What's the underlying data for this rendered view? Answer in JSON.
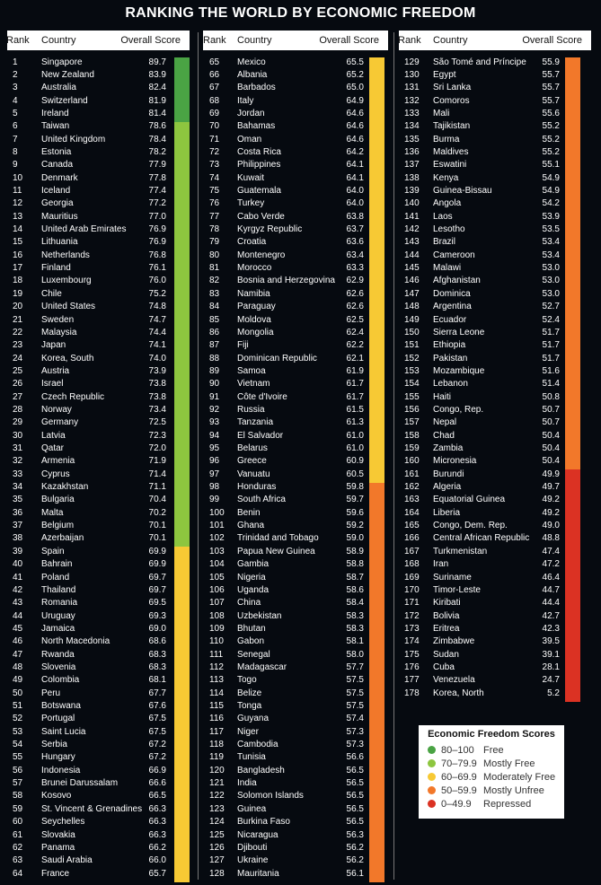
{
  "title": "RANKING THE WORLD BY ECONOMIC FREEDOM",
  "headers": {
    "rank": "Rank",
    "country": "Country",
    "score": "Overall Score"
  },
  "colors": {
    "free": "#4aa344",
    "mostly_free": "#8dc63f",
    "moderately_free": "#f7c934",
    "mostly_unfree": "#f2782a",
    "repressed": "#db3223"
  },
  "legend": {
    "title": "Economic Freedom Scores",
    "items": [
      {
        "range": "80–100",
        "label": "Free",
        "color": "#4aa344"
      },
      {
        "range": "70–79.9",
        "label": "Mostly Free",
        "color": "#8dc63f"
      },
      {
        "range": "60–69.9",
        "label": "Moderately Free",
        "color": "#f7c934"
      },
      {
        "range": "50–59.9",
        "label": "Mostly Unfree",
        "color": "#f2782a"
      },
      {
        "range": "0–49.9",
        "label": "Repressed",
        "color": "#db3223"
      }
    ]
  },
  "chart_data": {
    "type": "table",
    "title": "RANKING THE WORLD BY ECONOMIC FREEDOM",
    "columns": [
      "Rank",
      "Country",
      "Overall Score"
    ],
    "rows": [
      [
        1,
        "Singapore",
        "89.7"
      ],
      [
        2,
        "New Zealand",
        "83.9"
      ],
      [
        3,
        "Australia",
        "82.4"
      ],
      [
        4,
        "Switzerland",
        "81.9"
      ],
      [
        5,
        "Ireland",
        "81.4"
      ],
      [
        6,
        "Taiwan",
        "78.6"
      ],
      [
        7,
        "United Kingdom",
        "78.4"
      ],
      [
        8,
        "Estonia",
        "78.2"
      ],
      [
        9,
        "Canada",
        "77.9"
      ],
      [
        10,
        "Denmark",
        "77.8"
      ],
      [
        11,
        "Iceland",
        "77.4"
      ],
      [
        12,
        "Georgia",
        "77.2"
      ],
      [
        13,
        "Mauritius",
        "77.0"
      ],
      [
        14,
        "United Arab Emirates",
        "76.9"
      ],
      [
        15,
        "Lithuania",
        "76.9"
      ],
      [
        16,
        "Netherlands",
        "76.8"
      ],
      [
        17,
        "Finland",
        "76.1"
      ],
      [
        18,
        "Luxembourg",
        "76.0"
      ],
      [
        19,
        "Chile",
        "75.2"
      ],
      [
        20,
        "United States",
        "74.8"
      ],
      [
        21,
        "Sweden",
        "74.7"
      ],
      [
        22,
        "Malaysia",
        "74.4"
      ],
      [
        23,
        "Japan",
        "74.1"
      ],
      [
        24,
        "Korea, South",
        "74.0"
      ],
      [
        25,
        "Austria",
        "73.9"
      ],
      [
        26,
        "Israel",
        "73.8"
      ],
      [
        27,
        "Czech Republic",
        "73.8"
      ],
      [
        28,
        "Norway",
        "73.4"
      ],
      [
        29,
        "Germany",
        "72.5"
      ],
      [
        30,
        "Latvia",
        "72.3"
      ],
      [
        31,
        "Qatar",
        "72.0"
      ],
      [
        32,
        "Armenia",
        "71.9"
      ],
      [
        33,
        "Cyprus",
        "71.4"
      ],
      [
        34,
        "Kazakhstan",
        "71.1"
      ],
      [
        35,
        "Bulgaria",
        "70.4"
      ],
      [
        36,
        "Malta",
        "70.2"
      ],
      [
        37,
        "Belgium",
        "70.1"
      ],
      [
        38,
        "Azerbaijan",
        "70.1"
      ],
      [
        39,
        "Spain",
        "69.9"
      ],
      [
        40,
        "Bahrain",
        "69.9"
      ],
      [
        41,
        "Poland",
        "69.7"
      ],
      [
        42,
        "Thailand",
        "69.7"
      ],
      [
        43,
        "Romania",
        "69.5"
      ],
      [
        44,
        "Uruguay",
        "69.3"
      ],
      [
        45,
        "Jamaica",
        "69.0"
      ],
      [
        46,
        "North Macedonia",
        "68.6"
      ],
      [
        47,
        "Rwanda",
        "68.3"
      ],
      [
        48,
        "Slovenia",
        "68.3"
      ],
      [
        49,
        "Colombia",
        "68.1"
      ],
      [
        50,
        "Peru",
        "67.7"
      ],
      [
        51,
        "Botswana",
        "67.6"
      ],
      [
        52,
        "Portugal",
        "67.5"
      ],
      [
        53,
        "Saint Lucia",
        "67.5"
      ],
      [
        54,
        "Serbia",
        "67.2"
      ],
      [
        55,
        "Hungary",
        "67.2"
      ],
      [
        56,
        "Indonesia",
        "66.9"
      ],
      [
        57,
        "Brunei Darussalam",
        "66.6"
      ],
      [
        58,
        "Kosovo",
        "66.5"
      ],
      [
        59,
        "St. Vincent & Grenadines",
        "66.3"
      ],
      [
        60,
        "Seychelles",
        "66.3"
      ],
      [
        61,
        "Slovakia",
        "66.3"
      ],
      [
        62,
        "Panama",
        "66.2"
      ],
      [
        63,
        "Saudi Arabia",
        "66.0"
      ],
      [
        64,
        "France",
        "65.7"
      ],
      [
        65,
        "Mexico",
        "65.5"
      ],
      [
        66,
        "Albania",
        "65.2"
      ],
      [
        67,
        "Barbados",
        "65.0"
      ],
      [
        68,
        "Italy",
        "64.9"
      ],
      [
        69,
        "Jordan",
        "64.6"
      ],
      [
        70,
        "Bahamas",
        "64.6"
      ],
      [
        71,
        "Oman",
        "64.6"
      ],
      [
        72,
        "Costa Rica",
        "64.2"
      ],
      [
        73,
        "Philippines",
        "64.1"
      ],
      [
        74,
        "Kuwait",
        "64.1"
      ],
      [
        75,
        "Guatemala",
        "64.0"
      ],
      [
        76,
        "Turkey",
        "64.0"
      ],
      [
        77,
        "Cabo Verde",
        "63.8"
      ],
      [
        78,
        "Kyrgyz Republic",
        "63.7"
      ],
      [
        79,
        "Croatia",
        "63.6"
      ],
      [
        80,
        "Montenegro",
        "63.4"
      ],
      [
        81,
        "Morocco",
        "63.3"
      ],
      [
        82,
        "Bosnia and Herzegovina",
        "62.9"
      ],
      [
        83,
        "Namibia",
        "62.6"
      ],
      [
        84,
        "Paraguay",
        "62.6"
      ],
      [
        85,
        "Moldova",
        "62.5"
      ],
      [
        86,
        "Mongolia",
        "62.4"
      ],
      [
        87,
        "Fiji",
        "62.2"
      ],
      [
        88,
        "Dominican Republic",
        "62.1"
      ],
      [
        89,
        "Samoa",
        "61.9"
      ],
      [
        90,
        "Vietnam",
        "61.7"
      ],
      [
        91,
        "Côte d'Ivoire",
        "61.7"
      ],
      [
        92,
        "Russia",
        "61.5"
      ],
      [
        93,
        "Tanzania",
        "61.3"
      ],
      [
        94,
        "El Salvador",
        "61.0"
      ],
      [
        95,
        "Belarus",
        "61.0"
      ],
      [
        96,
        "Greece",
        "60.9"
      ],
      [
        97,
        "Vanuatu",
        "60.5"
      ],
      [
        98,
        "Honduras",
        "59.8"
      ],
      [
        99,
        "South Africa",
        "59.7"
      ],
      [
        100,
        "Benin",
        "59.6"
      ],
      [
        101,
        "Ghana",
        "59.2"
      ],
      [
        102,
        "Trinidad and Tobago",
        "59.0"
      ],
      [
        103,
        "Papua New Guinea",
        "58.9"
      ],
      [
        104,
        "Gambia",
        "58.8"
      ],
      [
        105,
        "Nigeria",
        "58.7"
      ],
      [
        106,
        "Uganda",
        "58.6"
      ],
      [
        107,
        "China",
        "58.4"
      ],
      [
        108,
        "Uzbekistan",
        "58.3"
      ],
      [
        109,
        "Bhutan",
        "58.3"
      ],
      [
        110,
        "Gabon",
        "58.1"
      ],
      [
        111,
        "Senegal",
        "58.0"
      ],
      [
        112,
        "Madagascar",
        "57.7"
      ],
      [
        113,
        "Togo",
        "57.5"
      ],
      [
        114,
        "Belize",
        "57.5"
      ],
      [
        115,
        "Tonga",
        "57.5"
      ],
      [
        116,
        "Guyana",
        "57.4"
      ],
      [
        117,
        "Niger",
        "57.3"
      ],
      [
        118,
        "Cambodia",
        "57.3"
      ],
      [
        119,
        "Tunisia",
        "56.6"
      ],
      [
        120,
        "Bangladesh",
        "56.5"
      ],
      [
        121,
        "India",
        "56.5"
      ],
      [
        122,
        "Solomon Islands",
        "56.5"
      ],
      [
        123,
        "Guinea",
        "56.5"
      ],
      [
        124,
        "Burkina Faso",
        "56.5"
      ],
      [
        125,
        "Nicaragua",
        "56.3"
      ],
      [
        126,
        "Djibouti",
        "56.2"
      ],
      [
        127,
        "Ukraine",
        "56.2"
      ],
      [
        128,
        "Mauritania",
        "56.1"
      ],
      [
        129,
        "São Tomé and Príncipe",
        "55.9"
      ],
      [
        130,
        "Egypt",
        "55.7"
      ],
      [
        131,
        "Sri Lanka",
        "55.7"
      ],
      [
        132,
        "Comoros",
        "55.7"
      ],
      [
        133,
        "Mali",
        "55.6"
      ],
      [
        134,
        "Tajikistan",
        "55.2"
      ],
      [
        135,
        "Burma",
        "55.2"
      ],
      [
        136,
        "Maldives",
        "55.2"
      ],
      [
        137,
        "Eswatini",
        "55.1"
      ],
      [
        138,
        "Kenya",
        "54.9"
      ],
      [
        139,
        "Guinea-Bissau",
        "54.9"
      ],
      [
        140,
        "Angola",
        "54.2"
      ],
      [
        141,
        "Laos",
        "53.9"
      ],
      [
        142,
        "Lesotho",
        "53.5"
      ],
      [
        143,
        "Brazil",
        "53.4"
      ],
      [
        144,
        "Cameroon",
        "53.4"
      ],
      [
        145,
        "Malawi",
        "53.0"
      ],
      [
        146,
        "Afghanistan",
        "53.0"
      ],
      [
        147,
        "Dominica",
        "53.0"
      ],
      [
        148,
        "Argentina",
        "52.7"
      ],
      [
        149,
        "Ecuador",
        "52.4"
      ],
      [
        150,
        "Sierra Leone",
        "51.7"
      ],
      [
        151,
        "Ethiopia",
        "51.7"
      ],
      [
        152,
        "Pakistan",
        "51.7"
      ],
      [
        153,
        "Mozambique",
        "51.6"
      ],
      [
        154,
        "Lebanon",
        "51.4"
      ],
      [
        155,
        "Haiti",
        "50.8"
      ],
      [
        156,
        "Congo, Rep.",
        "50.7"
      ],
      [
        157,
        "Nepal",
        "50.7"
      ],
      [
        158,
        "Chad",
        "50.4"
      ],
      [
        159,
        "Zambia",
        "50.4"
      ],
      [
        160,
        "Micronesia",
        "50.4"
      ],
      [
        161,
        "Burundi",
        "49.9"
      ],
      [
        162,
        "Algeria",
        "49.7"
      ],
      [
        163,
        "Equatorial Guinea",
        "49.2"
      ],
      [
        164,
        "Liberia",
        "49.2"
      ],
      [
        165,
        "Congo, Dem. Rep.",
        "49.0"
      ],
      [
        166,
        "Central African Republic",
        "48.8"
      ],
      [
        167,
        "Turkmenistan",
        "47.4"
      ],
      [
        168,
        "Iran",
        "47.2"
      ],
      [
        169,
        "Suriname",
        "46.4"
      ],
      [
        170,
        "Timor-Leste",
        "44.7"
      ],
      [
        171,
        "Kiribati",
        "44.4"
      ],
      [
        172,
        "Bolivia",
        "42.7"
      ],
      [
        173,
        "Eritrea",
        "42.3"
      ],
      [
        174,
        "Zimbabwe",
        "39.5"
      ],
      [
        175,
        "Sudan",
        "39.1"
      ],
      [
        176,
        "Cuba",
        "28.1"
      ],
      [
        177,
        "Venezuela",
        "24.7"
      ],
      [
        178,
        "Korea, North",
        "5.2"
      ]
    ]
  }
}
